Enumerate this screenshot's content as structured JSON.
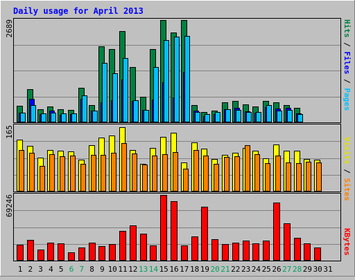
{
  "title": "Daily usage for April 2013",
  "colors": {
    "background": "#C0C0C0",
    "plot_bg": "#C0C0C0",
    "title": "#0000FF",
    "hits": "#008040",
    "files": "#0000FF",
    "pages": "#00C0FF",
    "visits": "#FFFF00",
    "sites": "#FF8000",
    "kbytes": "#FF0000",
    "weekend_label": "#00A060",
    "grid": "#808080"
  },
  "chart_data": [
    {
      "type": "bar",
      "panel": "top",
      "max_label": "2689",
      "ylim": [
        0,
        2689
      ],
      "labels": {
        "pages": "Pages",
        "sep1": " / ",
        "files": "Files",
        "sep2": " / ",
        "hits": "Hits"
      },
      "x": [
        1,
        2,
        3,
        4,
        5,
        6,
        7,
        8,
        9,
        10,
        11,
        12,
        13,
        14,
        15,
        16,
        17,
        18,
        19,
        20,
        21,
        22,
        23,
        24,
        25,
        26,
        27,
        28,
        29,
        30,
        31
      ],
      "series": [
        {
          "name": "Hits",
          "values": [
            440,
            880,
            340,
            420,
            350,
            330,
            900,
            460,
            1990,
            1930,
            2390,
            1460,
            670,
            1920,
            2720,
            2370,
            2680,
            460,
            280,
            310,
            520,
            560,
            480,
            410,
            560,
            520,
            460,
            380,
            0,
            0,
            0
          ]
        },
        {
          "name": "Files",
          "values": [
            250,
            620,
            220,
            300,
            200,
            210,
            610,
            300,
            520,
            580,
            1120,
            570,
            320,
            600,
            1050,
            650,
            1320,
            300,
            160,
            220,
            350,
            380,
            290,
            260,
            400,
            360,
            380,
            240,
            0,
            0,
            0
          ]
        },
        {
          "name": "Pages",
          "values": [
            260,
            450,
            230,
            260,
            240,
            240,
            700,
            300,
            1570,
            1290,
            1690,
            580,
            330,
            1450,
            2160,
            2250,
            2270,
            280,
            210,
            270,
            340,
            330,
            280,
            270,
            450,
            300,
            330,
            220,
            0,
            0,
            0
          ]
        }
      ]
    },
    {
      "type": "bar",
      "panel": "middle",
      "max_label": "165",
      "ylim": [
        0,
        165
      ],
      "labels": {
        "sites": "Sites",
        "sep1": " / ",
        "visits": "Visits"
      },
      "x": [
        1,
        2,
        3,
        4,
        5,
        6,
        7,
        8,
        9,
        10,
        11,
        12,
        13,
        14,
        15,
        16,
        17,
        18,
        19,
        20,
        21,
        22,
        23,
        24,
        25,
        26,
        27,
        28,
        29,
        30,
        31
      ],
      "series": [
        {
          "name": "Visits",
          "values": [
            130,
            115,
            85,
            105,
            102,
            100,
            80,
            117,
            135,
            140,
            162,
            105,
            70,
            109,
            137,
            147,
            73,
            123,
            108,
            82,
            92,
            98,
            110,
            103,
            84,
            118,
            103,
            102,
            82,
            80,
            0
          ]
        },
        {
          "name": "Sites",
          "values": [
            105,
            98,
            65,
            93,
            88,
            91,
            69,
            92,
            92,
            97,
            122,
            95,
            67,
            91,
            94,
            99,
            58,
            104,
            91,
            69,
            87,
            88,
            117,
            93,
            71,
            91,
            73,
            71,
            74,
            73,
            0
          ]
        }
      ]
    },
    {
      "type": "bar",
      "panel": "bottom",
      "max_label": "69246",
      "ylim": [
        0,
        69246
      ],
      "labels": {
        "kbytes": "KBytes"
      },
      "x": [
        1,
        2,
        3,
        4,
        5,
        6,
        7,
        8,
        9,
        10,
        11,
        12,
        13,
        14,
        15,
        16,
        17,
        18,
        19,
        20,
        21,
        22,
        23,
        24,
        25,
        26,
        27,
        28,
        29,
        30,
        31
      ],
      "series": [
        {
          "name": "KBytes",
          "values": [
            17000,
            22000,
            11500,
            18800,
            18300,
            9000,
            13800,
            18900,
            15000,
            17300,
            31500,
            37200,
            28400,
            16000,
            71000,
            63000,
            16000,
            25800,
            56700,
            22300,
            17500,
            18800,
            20800,
            17900,
            21000,
            61500,
            39000,
            24000,
            18000,
            13500,
            0
          ]
        }
      ]
    }
  ],
  "x_axis": {
    "days": [
      "1",
      "2",
      "3",
      "4",
      "5",
      "6",
      "7",
      "8",
      "9",
      "10",
      "11",
      "12",
      "13",
      "14",
      "15",
      "16",
      "17",
      "18",
      "19",
      "20",
      "21",
      "22",
      "23",
      "24",
      "25",
      "26",
      "27",
      "28",
      "29",
      "30",
      "31"
    ],
    "weekend_days": [
      "6",
      "7",
      "13",
      "14",
      "20",
      "21",
      "27",
      "28"
    ]
  }
}
